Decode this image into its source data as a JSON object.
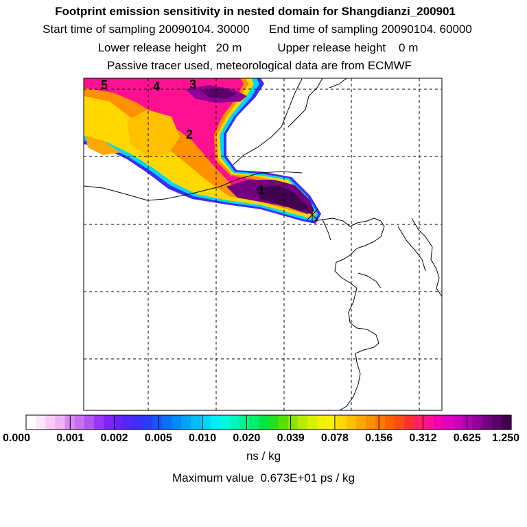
{
  "header": {
    "title": "Footprint emission sensitivity in nested domain for Shangdianzi_200901",
    "sampling": "Start time of sampling 20090104. 30000      End time of sampling 20090104. 60000",
    "release": "Lower release height   20 m           Upper release height    0 m",
    "tracer": "Passive tracer used, meteorological data are from ECMWF"
  },
  "map": {
    "region_labels": [
      "1",
      "2",
      "3",
      "4",
      "5"
    ]
  },
  "colorbar": {
    "tick_labels": [
      "0.000",
      "0.001",
      "0.002",
      "0.005",
      "0.010",
      "0.020",
      "0.039",
      "0.078",
      "0.156",
      "0.312",
      "0.625",
      "1.250"
    ],
    "colors": [
      "#ffffff",
      "#fde6fd",
      "#f7cdf7",
      "#eeb3f2",
      "#d98af0",
      "#c870f0",
      "#b155f2",
      "#9a36f5",
      "#7f22f7",
      "#6a22f8",
      "#5028f8",
      "#3a2ef7",
      "#2a3cf7",
      "#1a55f8",
      "#0a70f8",
      "#0088f8",
      "#00a2f8",
      "#00bcf7",
      "#00d6f7",
      "#00eef7",
      "#00f7e0",
      "#00f7b8",
      "#00f290",
      "#00ef6a",
      "#00e640",
      "#22e022",
      "#5ae000",
      "#8ee400",
      "#b8ea00",
      "#d8f000",
      "#f0f000",
      "#fff000",
      "#ffd800",
      "#ffc000",
      "#ffa800",
      "#ff9000",
      "#ff7a00",
      "#ff6200",
      "#ff4a1a",
      "#ff3030",
      "#ff2060",
      "#ff1090",
      "#f000b0",
      "#e000c0",
      "#cc00bc",
      "#b000b0",
      "#900098",
      "#720080",
      "#5a0066",
      "#420050"
    ],
    "unit": "ns / kg"
  },
  "max_value": "Maximum value  0.673E+01 ps / kg"
}
